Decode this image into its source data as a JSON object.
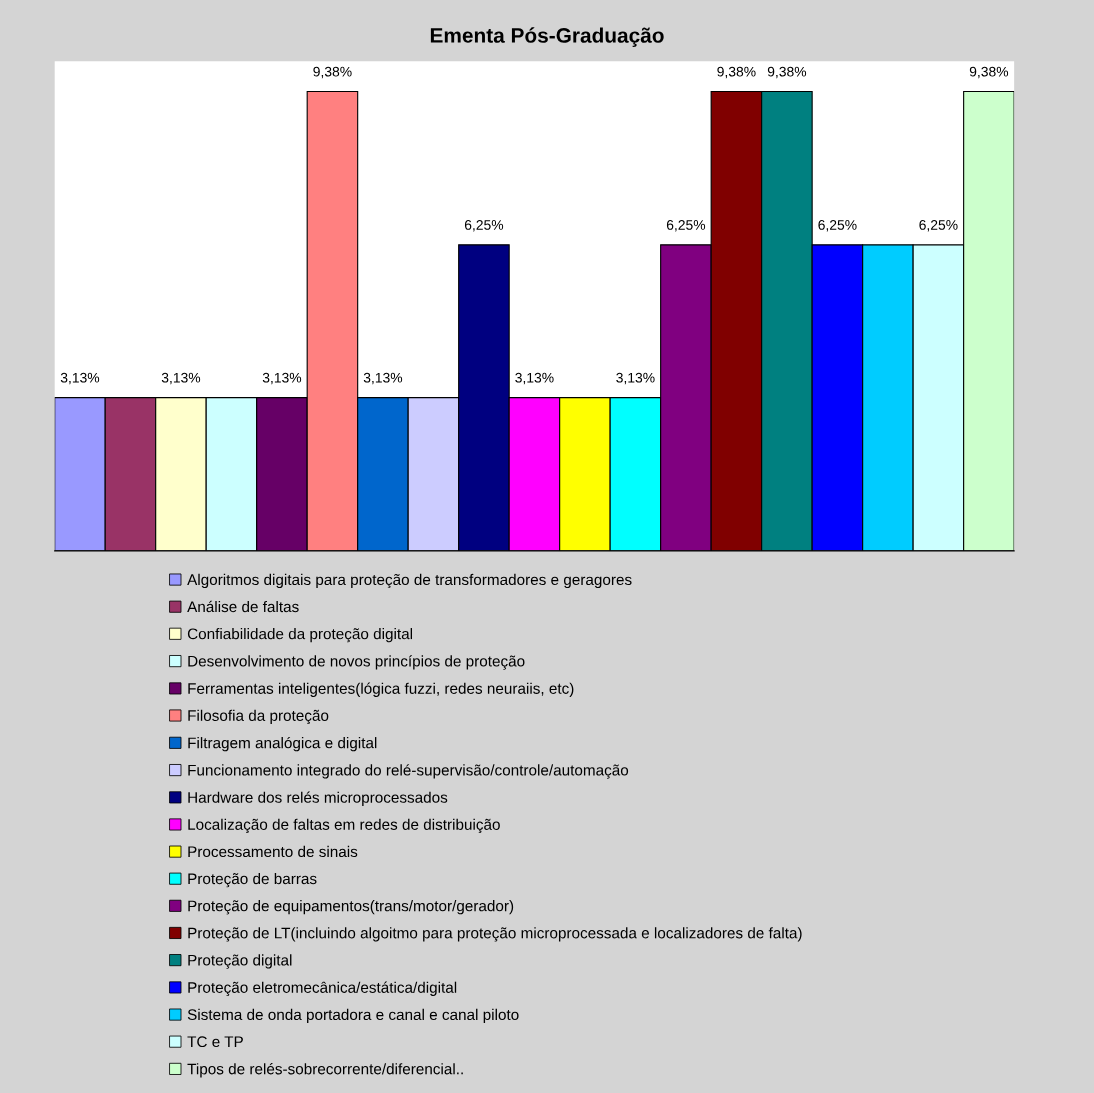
{
  "chart_data": {
    "type": "bar",
    "title": "Ementa Pós-Graduação",
    "categories": [
      null
    ],
    "ylim": [
      0,
      10
    ],
    "grid": false,
    "legend": "bottom",
    "tick_labels": false,
    "series": [
      {
        "name": "Algoritmos digitais para proteção de transformadores e geragores",
        "color": "#9999ff",
        "values": [
          3.13
        ],
        "value_labels": [
          "3,13%"
        ]
      },
      {
        "name": "Análise de faltas",
        "color": "#993366",
        "values": [
          3.13
        ],
        "value_labels": [
          null
        ]
      },
      {
        "name": "Confiabilidade da proteção digital",
        "color": "#ffffcc",
        "values": [
          3.13
        ],
        "value_labels": [
          "3,13%"
        ]
      },
      {
        "name": "Desenvolvimento de novos princípios de proteção",
        "color": "#ccffff",
        "values": [
          3.13
        ],
        "value_labels": [
          null
        ]
      },
      {
        "name": "Ferramentas inteligentes(lógica fuzzi, redes neuraiis, etc)",
        "color": "#660066",
        "values": [
          3.13
        ],
        "value_labels": [
          "3,13%"
        ]
      },
      {
        "name": "Filosofia da proteção",
        "color": "#ff8080",
        "values": [
          9.38
        ],
        "value_labels": [
          "9,38%"
        ]
      },
      {
        "name": "Filtragem analógica e digital",
        "color": "#0066cc",
        "values": [
          3.13
        ],
        "value_labels": [
          "3,13%"
        ]
      },
      {
        "name": "Funcionamento integrado do relé-supervisão/controle/automação",
        "color": "#ccccff",
        "values": [
          3.13
        ],
        "value_labels": [
          null
        ]
      },
      {
        "name": "Hardware dos relés microprocessados",
        "color": "#000080",
        "values": [
          6.25
        ],
        "value_labels": [
          "6,25%"
        ]
      },
      {
        "name": "Localização de faltas em redes de distribuição",
        "color": "#ff00ff",
        "values": [
          3.13
        ],
        "value_labels": [
          "3,13%"
        ]
      },
      {
        "name": "Processamento de sinais",
        "color": "#ffff00",
        "values": [
          3.13
        ],
        "value_labels": [
          null
        ]
      },
      {
        "name": "Proteção de barras",
        "color": "#00ffff",
        "values": [
          3.13
        ],
        "value_labels": [
          "3,13%"
        ]
      },
      {
        "name": "Proteção de equipamentos(trans/motor/gerador)",
        "color": "#800080",
        "values": [
          6.25
        ],
        "value_labels": [
          "6,25%"
        ]
      },
      {
        "name": "Proteção de LT(incluindo algoitmo para proteção microprocessada e localizadores de falta)",
        "color": "#800000",
        "values": [
          9.38
        ],
        "value_labels": [
          "9,38%"
        ]
      },
      {
        "name": "Proteção digital",
        "color": "#008080",
        "values": [
          9.38
        ],
        "value_labels": [
          "9,38%"
        ]
      },
      {
        "name": "Proteção eletromecânica/estática/digital",
        "color": "#0000ff",
        "values": [
          6.25
        ],
        "value_labels": [
          "6,25%"
        ]
      },
      {
        "name": "Sistema de onda portadora e canal e canal piloto",
        "color": "#00ccff",
        "values": [
          6.25
        ],
        "value_labels": [
          null
        ]
      },
      {
        "name": "TC e TP",
        "color": "#ccffff",
        "values": [
          6.25
        ],
        "value_labels": [
          "6,25%"
        ]
      },
      {
        "name": "Tipos de relés-sobrecorrente/diferencial..",
        "color": "#ccffcc",
        "values": [
          9.38
        ],
        "value_labels": [
          "9,38%"
        ]
      }
    ]
  }
}
